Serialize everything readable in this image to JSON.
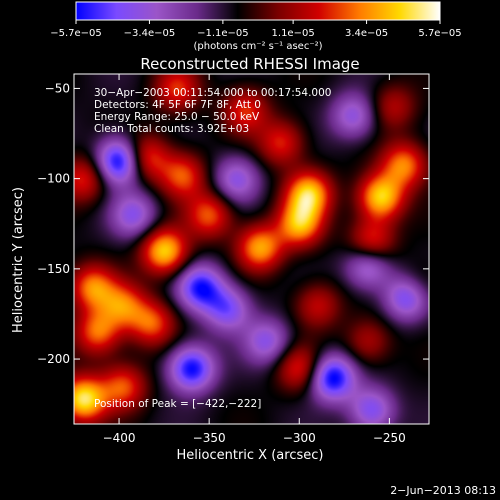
{
  "chart_data": {
    "type": "heatmap",
    "title": "Reconstructed RHESSI Image",
    "xlabel": "Heliocentric X (arcsec)",
    "ylabel": "Heliocentric Y (arcsec)",
    "xlim": [
      -425,
      -228
    ],
    "ylim": [
      -236,
      -42
    ],
    "xticks": [
      -400,
      -350,
      -300,
      -250
    ],
    "yticks": [
      -50,
      -100,
      -150,
      -200
    ],
    "xtick_labels": [
      "−400",
      "−350",
      "−300",
      "−250"
    ],
    "ytick_labels": [
      "−50",
      "−100",
      "−150",
      "−200"
    ],
    "colorbar": {
      "range": [
        -5.7e-05,
        5.7e-05
      ],
      "ticks": [
        -5.7e-05,
        -3.4e-05,
        -1.1e-05,
        1.1e-05,
        3.4e-05,
        5.7e-05
      ],
      "tick_labels": [
        "−5.7e−05",
        "−3.4e−05",
        "−1.1e−05",
        "1.1e−05",
        "3.4e−05",
        "5.7e−05"
      ],
      "unit_label": "(photons cm⁻² s⁻¹ asec⁻²)",
      "colors": [
        "#0000ff",
        "#7a4aff",
        "#9b55c8",
        "#6a2a8a",
        "#000000",
        "#7a0000",
        "#d00000",
        "#ff7a00",
        "#ffd800",
        "#ffffff"
      ]
    },
    "annotations": [
      "30−Apr−2003 00:11:54.000 to 00:17:54.000",
      "Detectors: 4F 5F 6F 7F 8F, Att 0",
      "Energy Range: 25.0 − 50.0 keV",
      "Clean     Total counts: 3.92E+03"
    ],
    "peak_label": "Position of Peak = [−422,−222]",
    "peak_position": [
      -422,
      -222
    ],
    "blobs": [
      {
        "x": -385,
        "y": -88,
        "v": 3.5e-05
      },
      {
        "x": -368,
        "y": -50,
        "v": 3e-05
      },
      {
        "x": -365,
        "y": -98,
        "v": 3.5e-05
      },
      {
        "x": -330,
        "y": -62,
        "v": 3e-05
      },
      {
        "x": -310,
        "y": -80,
        "v": 3e-05
      },
      {
        "x": -295,
        "y": -108,
        "v": 5e-05
      },
      {
        "x": -300,
        "y": -125,
        "v": 4.5e-05
      },
      {
        "x": -255,
        "y": -110,
        "v": 5.3e-05
      },
      {
        "x": -242,
        "y": -92,
        "v": 4e-05
      },
      {
        "x": -260,
        "y": -135,
        "v": 3.5e-05
      },
      {
        "x": -322,
        "y": -138,
        "v": 4.5e-05
      },
      {
        "x": -350,
        "y": -120,
        "v": 3.5e-05
      },
      {
        "x": -375,
        "y": -140,
        "v": 5.2e-05
      },
      {
        "x": -398,
        "y": -170,
        "v": 3.5e-05
      },
      {
        "x": -415,
        "y": -160,
        "v": 4e-05
      },
      {
        "x": -382,
        "y": -180,
        "v": 3.5e-05
      },
      {
        "x": -412,
        "y": -185,
        "v": 3.8e-05
      },
      {
        "x": -420,
        "y": -100,
        "v": 3e-05
      },
      {
        "x": -420,
        "y": -222,
        "v": 5.7e-05
      },
      {
        "x": -398,
        "y": -215,
        "v": 3.5e-05
      },
      {
        "x": -300,
        "y": -205,
        "v": 3e-05
      },
      {
        "x": -290,
        "y": -170,
        "v": 2.5e-05
      },
      {
        "x": -262,
        "y": -190,
        "v": 2.2e-05
      },
      {
        "x": -235,
        "y": -160,
        "v": 2e-05
      },
      {
        "x": -248,
        "y": -60,
        "v": 2.2e-05
      },
      {
        "x": -400,
        "y": -90,
        "v": -5.5e-05
      },
      {
        "x": -392,
        "y": -120,
        "v": -3e-05
      },
      {
        "x": -355,
        "y": -160,
        "v": -4.5e-05
      },
      {
        "x": -360,
        "y": -205,
        "v": -5e-05
      },
      {
        "x": -340,
        "y": -172,
        "v": -3.5e-05
      },
      {
        "x": -282,
        "y": -210,
        "v": -5.2e-05
      },
      {
        "x": -262,
        "y": -148,
        "v": -3.5e-05
      },
      {
        "x": -240,
        "y": -165,
        "v": -4.5e-05
      },
      {
        "x": -270,
        "y": -65,
        "v": -3e-05
      },
      {
        "x": -335,
        "y": -100,
        "v": -3e-05
      },
      {
        "x": -318,
        "y": -190,
        "v": -3e-05
      },
      {
        "x": -260,
        "y": -228,
        "v": -3.5e-05
      }
    ]
  },
  "footer": {
    "date_stamp": "2−Jun−2013 08:13"
  }
}
